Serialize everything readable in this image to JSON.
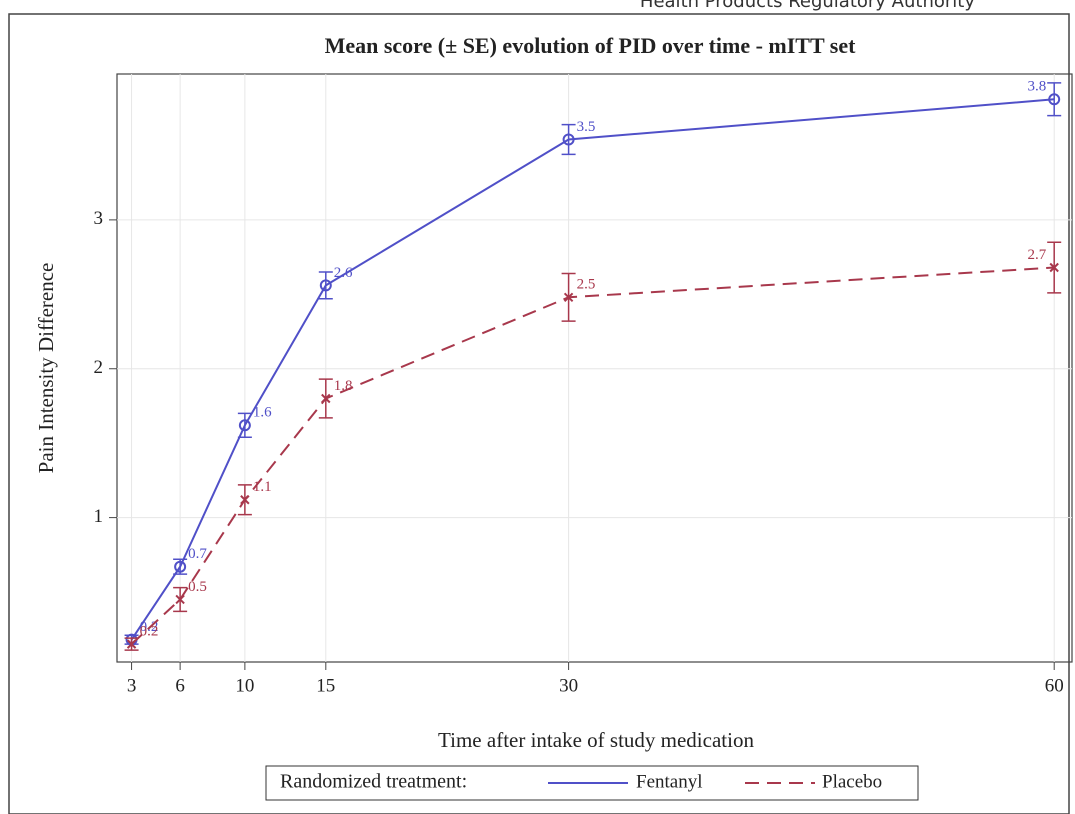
{
  "header": "Health Products Regulatory Authority",
  "chart_data": {
    "type": "line",
    "title": "Mean score (± SE) evolution of PID over time - mITT set",
    "x_label": "Time after intake of study medication",
    "y_label": "Pain Intensity Difference",
    "x": [
      3,
      6,
      10,
      15,
      30,
      60
    ],
    "xlim": [
      2.1,
      61.1
    ],
    "xticks": [
      3,
      6,
      10,
      15,
      30,
      60
    ],
    "ylim": [
      0.03,
      3.98
    ],
    "yticks": [
      1,
      2,
      3
    ],
    "grid": true,
    "legend_title": "Randomized treatment:",
    "legend_position": "bottom",
    "series": [
      {
        "name": "Fentanyl",
        "color": "#5050c8",
        "values": [
          0.18,
          0.67,
          1.62,
          2.56,
          3.54,
          3.81
        ],
        "value_labels": [
          "0.2",
          "0.7",
          "1.6",
          "2.6",
          "3.5",
          "3.8"
        ],
        "errors": [
          0.03,
          0.05,
          0.08,
          0.09,
          0.1,
          0.11
        ]
      },
      {
        "name": "Placebo",
        "color": "#a8384c",
        "values": [
          0.15,
          0.45,
          1.12,
          1.8,
          2.48,
          2.68
        ],
        "value_labels": [
          "0.2",
          "0.5",
          "1.1",
          "1.8",
          "2.5",
          "2.7"
        ],
        "errors": [
          0.04,
          0.08,
          0.1,
          0.13,
          0.16,
          0.17
        ]
      }
    ]
  }
}
